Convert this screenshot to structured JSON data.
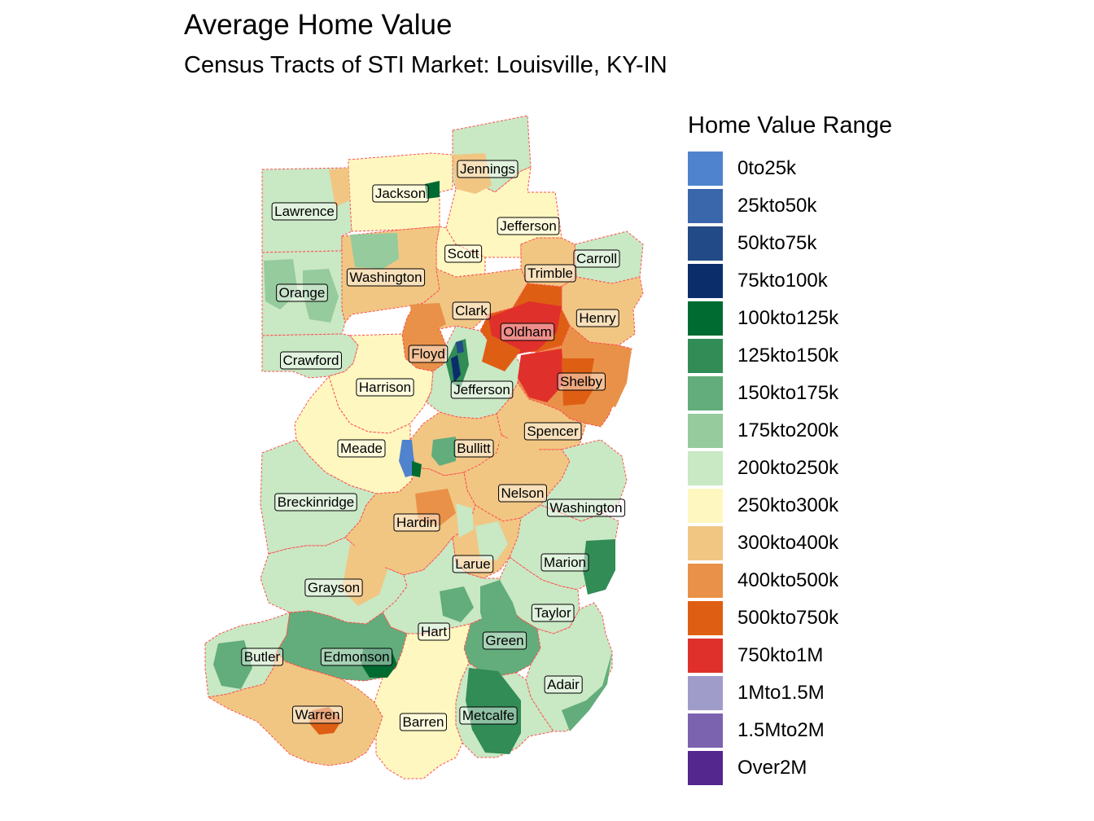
{
  "title": "Average Home Value",
  "subtitle": "Census Tracts of STI Market: Louisville, KY-IN",
  "legend": {
    "title": "Home Value Range",
    "items": [
      {
        "label": "0to25k",
        "color": "#5083CE"
      },
      {
        "label": "25kto50k",
        "color": "#3A67AB"
      },
      {
        "label": "50kto75k",
        "color": "#224A87"
      },
      {
        "label": "75kto100k",
        "color": "#0B2E6B"
      },
      {
        "label": "100kto125k",
        "color": "#006B31"
      },
      {
        "label": "125kto150k",
        "color": "#318C56"
      },
      {
        "label": "150kto175k",
        "color": "#62AD7B"
      },
      {
        "label": "175kto200k",
        "color": "#95CB9D"
      },
      {
        "label": "200kto250k",
        "color": "#C9E8C4"
      },
      {
        "label": "250kto300k",
        "color": "#FEF7C0"
      },
      {
        "label": "300kto400k",
        "color": "#F1C683"
      },
      {
        "label": "400kto500k",
        "color": "#E99148"
      },
      {
        "label": "500kto750k",
        "color": "#DE5F13"
      },
      {
        "label": "750kto1M",
        "color": "#E0302B"
      },
      {
        "label": "1Mto1.5M",
        "color": "#A09CCA"
      },
      {
        "label": "1.5Mto2M",
        "color": "#7B63AF"
      },
      {
        "label": "Over2M",
        "color": "#54278F"
      }
    ]
  },
  "counties": [
    {
      "name": "Jennings",
      "range": "200kto250k"
    },
    {
      "name": "Jackson",
      "range": "250kto300k"
    },
    {
      "name": "Lawrence",
      "range": "200kto250k"
    },
    {
      "name": "Jefferson",
      "range": "250kto300k"
    },
    {
      "name": "Scott",
      "range": "250kto300k"
    },
    {
      "name": "Carroll",
      "range": "200kto250k"
    },
    {
      "name": "Trimble",
      "range": "300kto400k"
    },
    {
      "name": "Washington",
      "range": "300kto400k"
    },
    {
      "name": "Orange",
      "range": "200kto250k"
    },
    {
      "name": "Clark",
      "range": "300kto400k"
    },
    {
      "name": "Henry",
      "range": "300kto400k"
    },
    {
      "name": "Oldham",
      "range": "500kto750k"
    },
    {
      "name": "Floyd",
      "range": "400kto500k"
    },
    {
      "name": "Crawford",
      "range": "200kto250k"
    },
    {
      "name": "Harrison",
      "range": "250kto300k"
    },
    {
      "name": "Jefferson",
      "range": "200kto250k"
    },
    {
      "name": "Shelby",
      "range": "400kto500k"
    },
    {
      "name": "Spencer",
      "range": "300kto400k"
    },
    {
      "name": "Meade",
      "range": "250kto300k"
    },
    {
      "name": "Bullitt",
      "range": "300kto400k"
    },
    {
      "name": "Breckinridge",
      "range": "200kto250k"
    },
    {
      "name": "Nelson",
      "range": "300kto400k"
    },
    {
      "name": "Washington",
      "range": "200kto250k"
    },
    {
      "name": "Hardin",
      "range": "300kto400k"
    },
    {
      "name": "Larue",
      "range": "300kto400k"
    },
    {
      "name": "Marion",
      "range": "200kto250k"
    },
    {
      "name": "Grayson",
      "range": "200kto250k"
    },
    {
      "name": "Taylor",
      "range": "200kto250k"
    },
    {
      "name": "Hart",
      "range": "200kto250k"
    },
    {
      "name": "Green",
      "range": "150kto175k"
    },
    {
      "name": "Butler",
      "range": "200kto250k"
    },
    {
      "name": "Edmonson",
      "range": "150kto175k"
    },
    {
      "name": "Adair",
      "range": "200kto250k"
    },
    {
      "name": "Warren",
      "range": "300kto400k"
    },
    {
      "name": "Barren",
      "range": "250kto300k"
    },
    {
      "name": "Metcalfe",
      "range": "200kto250k"
    }
  ]
}
